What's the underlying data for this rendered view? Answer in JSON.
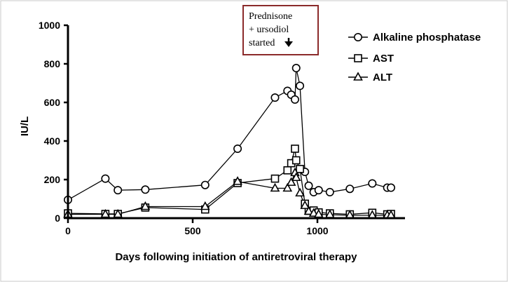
{
  "chart_data": {
    "type": "line",
    "xlabel": "Days following initiation of antiretroviral therapy",
    "ylabel": "IU/L",
    "xlim": [
      0,
      1350
    ],
    "ylim": [
      0,
      1000
    ],
    "x_ticks": [
      "0",
      "500",
      "1000"
    ],
    "y_ticks": [
      "0",
      "200",
      "400",
      "600",
      "800",
      "1000"
    ],
    "legend_position": "top-right",
    "annotation": {
      "lines": [
        "Prednisone",
        "+ ursodiol",
        "started"
      ],
      "arrow": "down-arrow-icon",
      "box_color": "#8b2a2a"
    },
    "series": [
      {
        "name": "Alkaline phosphatase",
        "marker": "circle",
        "points": [
          [
            0,
            95
          ],
          [
            150,
            205
          ],
          [
            200,
            145
          ],
          [
            310,
            148
          ],
          [
            550,
            172
          ],
          [
            680,
            360
          ],
          [
            830,
            625
          ],
          [
            880,
            660
          ],
          [
            895,
            640
          ],
          [
            910,
            615
          ],
          [
            915,
            778
          ],
          [
            930,
            686
          ],
          [
            950,
            240
          ],
          [
            965,
            168
          ],
          [
            985,
            135
          ],
          [
            1005,
            145
          ],
          [
            1050,
            135
          ],
          [
            1130,
            152
          ],
          [
            1220,
            180
          ],
          [
            1280,
            158
          ],
          [
            1295,
            158
          ]
        ]
      },
      {
        "name": "AST",
        "marker": "square",
        "points": [
          [
            0,
            25
          ],
          [
            150,
            22
          ],
          [
            200,
            22
          ],
          [
            310,
            55
          ],
          [
            550,
            45
          ],
          [
            680,
            182
          ],
          [
            830,
            205
          ],
          [
            880,
            248
          ],
          [
            895,
            285
          ],
          [
            910,
            360
          ],
          [
            915,
            300
          ],
          [
            930,
            255
          ],
          [
            950,
            75
          ],
          [
            965,
            38
          ],
          [
            985,
            40
          ],
          [
            1005,
            30
          ],
          [
            1050,
            25
          ],
          [
            1130,
            20
          ],
          [
            1220,
            28
          ],
          [
            1280,
            20
          ],
          [
            1295,
            22
          ]
        ]
      },
      {
        "name": "ALT",
        "marker": "triangle",
        "points": [
          [
            0,
            20
          ],
          [
            150,
            20
          ],
          [
            200,
            20
          ],
          [
            310,
            60
          ],
          [
            550,
            60
          ],
          [
            680,
            190
          ],
          [
            830,
            155
          ],
          [
            880,
            155
          ],
          [
            895,
            185
          ],
          [
            910,
            235
          ],
          [
            915,
            210
          ],
          [
            930,
            130
          ],
          [
            950,
            65
          ],
          [
            965,
            35
          ],
          [
            985,
            25
          ],
          [
            1005,
            20
          ],
          [
            1050,
            18
          ],
          [
            1130,
            15
          ],
          [
            1220,
            15
          ],
          [
            1280,
            15
          ],
          [
            1295,
            15
          ]
        ]
      }
    ]
  }
}
